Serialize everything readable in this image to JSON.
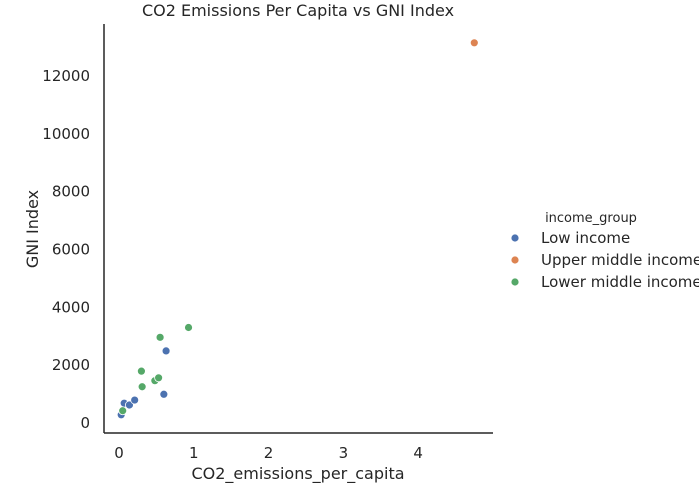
{
  "chart_data": {
    "type": "scatter",
    "title": "CO2 Emissions Per Capita vs GNI Index",
    "xlabel": "CO2_emissions_per_capita",
    "ylabel": "GNI Index",
    "xlim": [
      -0.2,
      5.0
    ],
    "ylim": [
      -350,
      13800
    ],
    "xticks": [
      0,
      1,
      2,
      3,
      4
    ],
    "yticks": [
      0,
      2000,
      4000,
      6000,
      8000,
      10000,
      12000
    ],
    "grid": false,
    "legend": {
      "title": "income_group",
      "placement": "right"
    },
    "series": [
      {
        "name": "Low income",
        "color": "#4c72b0",
        "points": [
          {
            "x": 0.03,
            "y": 280
          },
          {
            "x": 0.07,
            "y": 680
          },
          {
            "x": 0.14,
            "y": 620
          },
          {
            "x": 0.21,
            "y": 790
          },
          {
            "x": 0.6,
            "y": 990
          },
          {
            "x": 0.63,
            "y": 2490
          }
        ]
      },
      {
        "name": "Upper middle income",
        "color": "#dd8452",
        "points": [
          {
            "x": 4.75,
            "y": 13150
          }
        ]
      },
      {
        "name": "Lower middle income",
        "color": "#55a868",
        "points": [
          {
            "x": 0.05,
            "y": 420
          },
          {
            "x": 0.3,
            "y": 1790
          },
          {
            "x": 0.31,
            "y": 1250
          },
          {
            "x": 0.48,
            "y": 1460
          },
          {
            "x": 0.53,
            "y": 1560
          },
          {
            "x": 0.55,
            "y": 2960
          },
          {
            "x": 0.93,
            "y": 3300
          }
        ]
      }
    ]
  }
}
